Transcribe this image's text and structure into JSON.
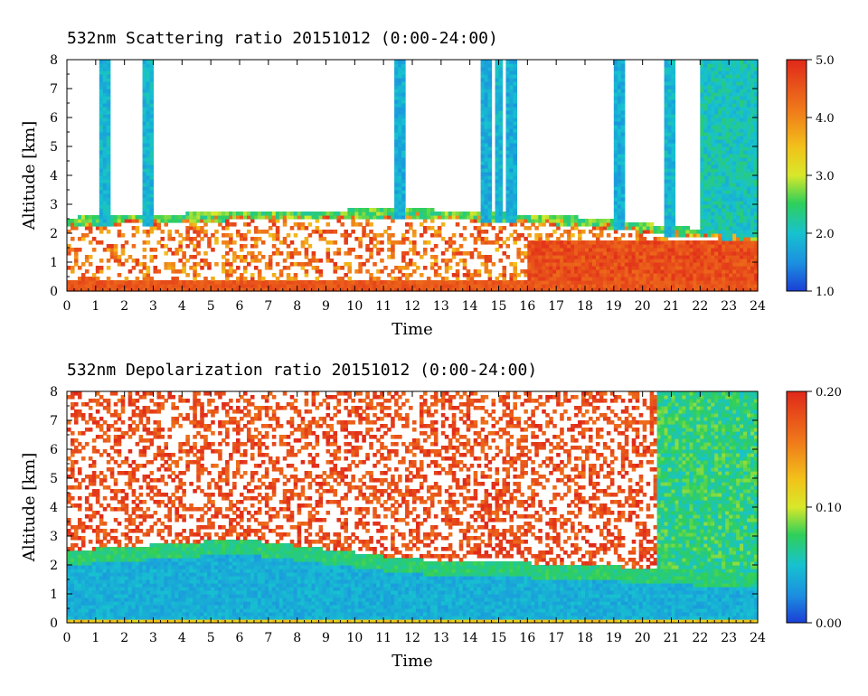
{
  "chart_data": [
    {
      "type": "heatmap",
      "title": "532nm Scattering ratio  20151012 (0:00-24:00)",
      "xlabel": "Time",
      "ylabel": "Altitude [km]",
      "xlim": [
        0,
        24
      ],
      "ylim": [
        0,
        8
      ],
      "x_ticks": [
        "0",
        "1",
        "2",
        "3",
        "4",
        "5",
        "6",
        "7",
        "8",
        "9",
        "10",
        "11",
        "12",
        "13",
        "14",
        "15",
        "16",
        "17",
        "18",
        "19",
        "20",
        "21",
        "22",
        "23",
        "24"
      ],
      "y_ticks": [
        "0",
        "1",
        "2",
        "3",
        "4",
        "5",
        "6",
        "7",
        "8"
      ],
      "colorbar": {
        "range": [
          1.0,
          5.0
        ],
        "ticks": [
          "1.0",
          "2.0",
          "3.0",
          "4.0",
          "5.0"
        ]
      },
      "features": {
        "surface_layer": {
          "altitude_km": 0.3,
          "value": 4.5
        },
        "boundary_layer_top_km": {
          "time": [
            0,
            6,
            12,
            18,
            22,
            24
          ],
          "value": [
            2.4,
            2.6,
            2.7,
            2.4,
            2.0,
            1.9
          ]
        },
        "aerosol_layer": {
          "time_start": 16,
          "time_end": 24,
          "altitude_km": [
            0.2,
            1.8
          ],
          "value": 4.6
        },
        "cloud_columns": [
          {
            "time": 1.3,
            "top_km": 8,
            "value": 1.9
          },
          {
            "time": 2.8,
            "top_km": 8,
            "value": 1.9
          },
          {
            "time": 11.6,
            "top_km": 8,
            "value": 1.8
          },
          {
            "time": 14.6,
            "top_km": 8,
            "value": 1.8
          },
          {
            "time": 15.0,
            "top_km": 8,
            "value": 1.9
          },
          {
            "time": 15.4,
            "top_km": 8,
            "value": 1.8
          },
          {
            "time": 19.2,
            "top_km": 8,
            "value": 1.8
          },
          {
            "time": 20.9,
            "top_km": 8,
            "value": 1.9
          },
          {
            "time": 22.9,
            "top_km": 8,
            "value": 2.0
          }
        ]
      }
    },
    {
      "type": "heatmap",
      "title": "532nm Depolarization ratio  20151012 (0:00-24:00)",
      "xlabel": "Time",
      "ylabel": "Altitude [km]",
      "xlim": [
        0,
        24
      ],
      "ylim": [
        0,
        8
      ],
      "x_ticks": [
        "0",
        "1",
        "2",
        "3",
        "4",
        "5",
        "6",
        "7",
        "8",
        "9",
        "10",
        "11",
        "12",
        "13",
        "14",
        "15",
        "16",
        "17",
        "18",
        "19",
        "20",
        "21",
        "22",
        "23",
        "24"
      ],
      "y_ticks": [
        "0",
        "1",
        "2",
        "3",
        "4",
        "5",
        "6",
        "7",
        "8"
      ],
      "colorbar": {
        "range": [
          0.0,
          0.2
        ],
        "ticks": [
          "0.00",
          "0.10",
          "0.20"
        ]
      },
      "features": {
        "boundary_layer_value": 0.04,
        "boundary_layer_top_km": {
          "time": [
            0,
            6,
            12,
            18,
            22,
            24
          ],
          "value": [
            2.5,
            2.9,
            2.2,
            2.0,
            1.8,
            1.8
          ]
        },
        "upper_noise_value": 0.18,
        "surface_value": 0.12
      }
    }
  ]
}
